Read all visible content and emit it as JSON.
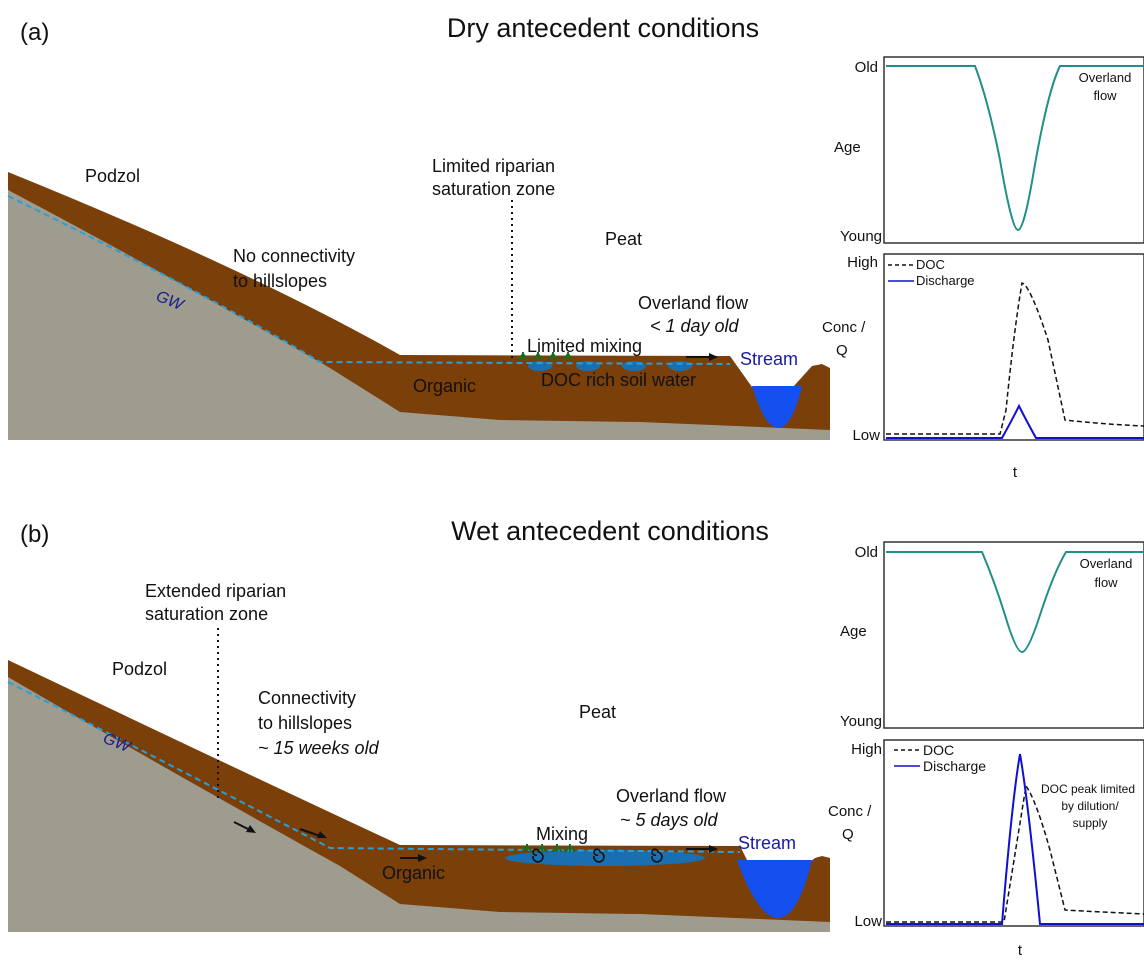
{
  "panel_a": {
    "label": "(a)",
    "title": "Dry antecedent conditions",
    "podzol": "Podzol",
    "gw": "GW",
    "connectivity_1": "No connectivity",
    "connectivity_2": "to hillslopes",
    "riparian_1": "Limited riparian",
    "riparian_2": "saturation zone",
    "peat": "Peat",
    "overland_flow": "Overland flow",
    "overland_age": "< 1 day old",
    "mixing": "Limited mixing",
    "doc_soil": "DOC rich soil water",
    "organic": "Organic",
    "stream": "Stream",
    "age_chart": {
      "old": "Old",
      "young": "Young",
      "ylabel": "Age",
      "annotation_1": "Overland",
      "annotation_2": "flow"
    },
    "conc_chart": {
      "high": "High",
      "low": "Low",
      "ylabel_1": "Conc /",
      "ylabel_2": "Q",
      "legend_doc": "DOC",
      "legend_q": "Discharge",
      "xlabel": "t"
    }
  },
  "panel_b": {
    "label": "(b)",
    "title": "Wet antecedent conditions",
    "podzol": "Podzol",
    "gw": "GW",
    "riparian_1": "Extended riparian",
    "riparian_2": "saturation zone",
    "connectivity_1": "Connectivity",
    "connectivity_2": "to hillslopes",
    "connectivity_age": "~ 15 weeks old",
    "peat": "Peat",
    "overland_flow": "Overland flow",
    "overland_age": "~ 5 days old",
    "mixing": "Mixing",
    "organic": "Organic",
    "stream": "Stream",
    "age_chart": {
      "old": "Old",
      "young": "Young",
      "ylabel": "Age",
      "annotation_1": "Overland",
      "annotation_2": "flow"
    },
    "conc_chart": {
      "high": "High",
      "low": "Low",
      "ylabel_1": "Conc /",
      "ylabel_2": "Q",
      "legend_doc": "DOC",
      "legend_q": "Discharge",
      "xlabel": "t",
      "annotation_1": "DOC peak limited",
      "annotation_2": "by dilution/",
      "annotation_3": "supply"
    }
  },
  "colors": {
    "bedrock": "#9e9b8f",
    "soil": "#7b3f0a",
    "water": "#1450f0",
    "pond": "#1a6fb0",
    "gw_line": "#2a9fd6",
    "age_line": "#1f8f88",
    "discharge_line": "#1010d0",
    "vegetation": "#1e6b1e"
  }
}
